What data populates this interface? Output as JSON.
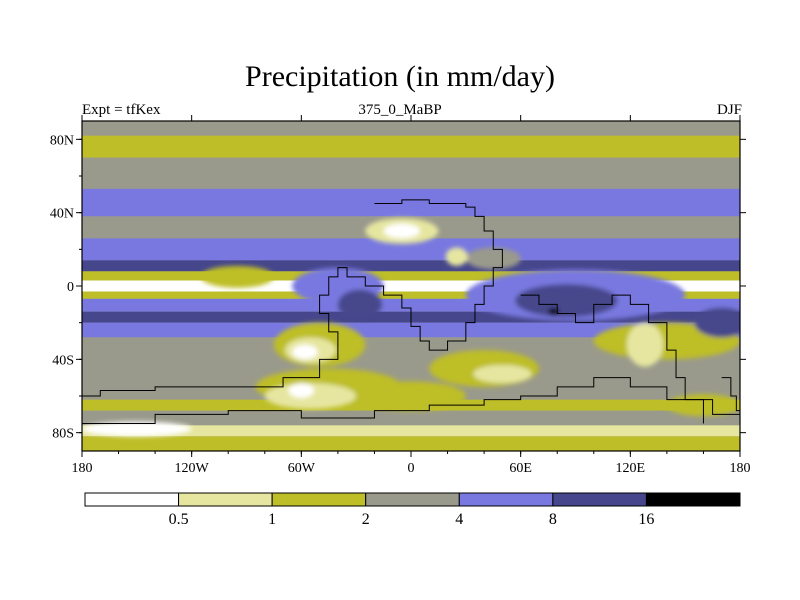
{
  "title": "Precipitation (in mm/day)",
  "left_label": "Expt = tfKex",
  "center_label": "375_0_MaBP",
  "right_label": "DJF",
  "x_ticks": [
    {
      "lon": -180,
      "label": "180"
    },
    {
      "lon": -120,
      "label": "120W"
    },
    {
      "lon": -60,
      "label": "60W"
    },
    {
      "lon": 0,
      "label": "0"
    },
    {
      "lon": 60,
      "label": "60E"
    },
    {
      "lon": 120,
      "label": "120E"
    },
    {
      "lon": 180,
      "label": "180"
    }
  ],
  "y_ticks": [
    {
      "lat": 80,
      "label": "80N"
    },
    {
      "lat": 40,
      "label": "40N"
    },
    {
      "lat": 0,
      "label": "0"
    },
    {
      "lat": -40,
      "label": "40S"
    },
    {
      "lat": -80,
      "label": "80S"
    }
  ],
  "lat_range": [
    -90,
    90
  ],
  "lon_range": [
    -180,
    180
  ],
  "colorbar": {
    "labels": [
      "0.5",
      "1",
      "2",
      "4",
      "8",
      "16"
    ],
    "colors": [
      "#ffffff",
      "#e6e6a0",
      "#bebe28",
      "#9a9a8c",
      "#7878e0",
      "#46468c",
      "#000000"
    ]
  },
  "zonal_bands": [
    {
      "lat_top": 90,
      "lat_bottom": 82,
      "level": 3
    },
    {
      "lat_top": 82,
      "lat_bottom": 70,
      "level": 2
    },
    {
      "lat_top": 70,
      "lat_bottom": 53,
      "level": 3
    },
    {
      "lat_top": 53,
      "lat_bottom": 38,
      "level": 4
    },
    {
      "lat_top": 38,
      "lat_bottom": 26,
      "level": 3
    },
    {
      "lat_top": 26,
      "lat_bottom": 14,
      "level": 4
    },
    {
      "lat_top": 14,
      "lat_bottom": 8,
      "level": 5
    },
    {
      "lat_top": 8,
      "lat_bottom": 3,
      "level": 2
    },
    {
      "lat_top": 3,
      "lat_bottom": -3,
      "level": 0
    },
    {
      "lat_top": -3,
      "lat_bottom": -7,
      "level": 2
    },
    {
      "lat_top": -7,
      "lat_bottom": -14,
      "level": 4
    },
    {
      "lat_top": -14,
      "lat_bottom": -20,
      "level": 5
    },
    {
      "lat_top": -20,
      "lat_bottom": -28,
      "level": 4
    },
    {
      "lat_top": -28,
      "lat_bottom": -62,
      "level": 3
    },
    {
      "lat_top": -62,
      "lat_bottom": -68,
      "level": 2
    },
    {
      "lat_top": -68,
      "lat_bottom": -76,
      "level": 3
    },
    {
      "lat_top": -76,
      "lat_bottom": -82,
      "level": 1
    },
    {
      "lat_top": -82,
      "lat_bottom": -90,
      "level": 2
    }
  ],
  "precip_patches": [
    {
      "lon": -95,
      "lat": 5,
      "rx": 20,
      "ry": 6,
      "level": 2
    },
    {
      "lon": -40,
      "lat": 0,
      "rx": 25,
      "ry": 10,
      "level": 4
    },
    {
      "lon": -28,
      "lat": -10,
      "rx": 12,
      "ry": 8,
      "level": 5
    },
    {
      "lon": -5,
      "lat": 30,
      "rx": 20,
      "ry": 7,
      "level": 1
    },
    {
      "lon": -5,
      "lat": 30,
      "rx": 10,
      "ry": 4,
      "level": 0
    },
    {
      "lon": 45,
      "lat": 15,
      "rx": 15,
      "ry": 6,
      "level": 3
    },
    {
      "lon": 25,
      "lat": 16,
      "rx": 6,
      "ry": 5,
      "level": 1
    },
    {
      "lon": 90,
      "lat": -5,
      "rx": 60,
      "ry": 14,
      "level": 4
    },
    {
      "lon": 85,
      "lat": -8,
      "rx": 28,
      "ry": 9,
      "level": 5
    },
    {
      "lon": 78,
      "lat": -14,
      "rx": 3,
      "ry": 2,
      "level": 6
    },
    {
      "lon": 140,
      "lat": -30,
      "rx": 40,
      "ry": 10,
      "level": 2
    },
    {
      "lon": 128,
      "lat": -32,
      "rx": 10,
      "ry": 12,
      "level": 1
    },
    {
      "lon": 170,
      "lat": -20,
      "rx": 15,
      "ry": 8,
      "level": 5
    },
    {
      "lon": -50,
      "lat": -32,
      "rx": 25,
      "ry": 12,
      "level": 2
    },
    {
      "lon": -55,
      "lat": -35,
      "rx": 14,
      "ry": 7,
      "level": 1
    },
    {
      "lon": -58,
      "lat": -36,
      "rx": 7,
      "ry": 4,
      "level": 0
    },
    {
      "lon": -45,
      "lat": -55,
      "rx": 40,
      "ry": 10,
      "level": 2
    },
    {
      "lon": -55,
      "lat": -60,
      "rx": 25,
      "ry": 7,
      "level": 1
    },
    {
      "lon": -60,
      "lat": -57,
      "rx": 7,
      "ry": 4,
      "level": 0
    },
    {
      "lon": 40,
      "lat": -45,
      "rx": 30,
      "ry": 10,
      "level": 2
    },
    {
      "lon": 50,
      "lat": -48,
      "rx": 16,
      "ry": 5,
      "level": 1
    },
    {
      "lon": 0,
      "lat": -60,
      "rx": 30,
      "ry": 8,
      "level": 2
    },
    {
      "lon": 160,
      "lat": -65,
      "rx": 20,
      "ry": 6,
      "level": 2
    },
    {
      "lon": -150,
      "lat": -78,
      "rx": 30,
      "ry": 4,
      "level": 0
    }
  ],
  "coastlines": [
    [
      [
        -20,
        45
      ],
      [
        -5,
        47
      ],
      [
        10,
        45
      ],
      [
        30,
        43
      ],
      [
        35,
        38
      ],
      [
        40,
        30
      ],
      [
        45,
        20
      ],
      [
        50,
        10
      ],
      [
        45,
        0
      ],
      [
        40,
        -10
      ],
      [
        35,
        -20
      ],
      [
        30,
        -30
      ],
      [
        20,
        -35
      ],
      [
        10,
        -30
      ],
      [
        5,
        -22
      ],
      [
        0,
        -12
      ],
      [
        -5,
        -5
      ],
      [
        -15,
        0
      ],
      [
        -25,
        5
      ],
      [
        -35,
        10
      ],
      [
        -40,
        5
      ],
      [
        -45,
        -5
      ],
      [
        -50,
        -15
      ],
      [
        -45,
        -25
      ],
      [
        -40,
        -40
      ],
      [
        -50,
        -50
      ],
      [
        -70,
        -55
      ],
      [
        -110,
        -55
      ],
      [
        -140,
        -57
      ],
      [
        -170,
        -60
      ],
      [
        -180,
        -62
      ]
    ],
    [
      [
        -180,
        -75
      ],
      [
        -140,
        -70
      ],
      [
        -100,
        -68
      ],
      [
        -60,
        -72
      ],
      [
        -20,
        -68
      ],
      [
        10,
        -65
      ],
      [
        40,
        -62
      ],
      [
        60,
        -60
      ],
      [
        80,
        -55
      ],
      [
        100,
        -50
      ],
      [
        120,
        -55
      ],
      [
        140,
        -62
      ],
      [
        165,
        -70
      ],
      [
        180,
        -72
      ]
    ],
    [
      [
        60,
        -5
      ],
      [
        70,
        -10
      ],
      [
        80,
        -15
      ],
      [
        90,
        -20
      ],
      [
        100,
        -10
      ],
      [
        110,
        -5
      ],
      [
        120,
        -10
      ],
      [
        130,
        -20
      ],
      [
        140,
        -35
      ],
      [
        145,
        -50
      ],
      [
        150,
        -62
      ],
      [
        160,
        -75
      ]
    ],
    [
      [
        170,
        -50
      ],
      [
        175,
        -60
      ],
      [
        178,
        -68
      ],
      [
        180,
        -70
      ]
    ]
  ]
}
